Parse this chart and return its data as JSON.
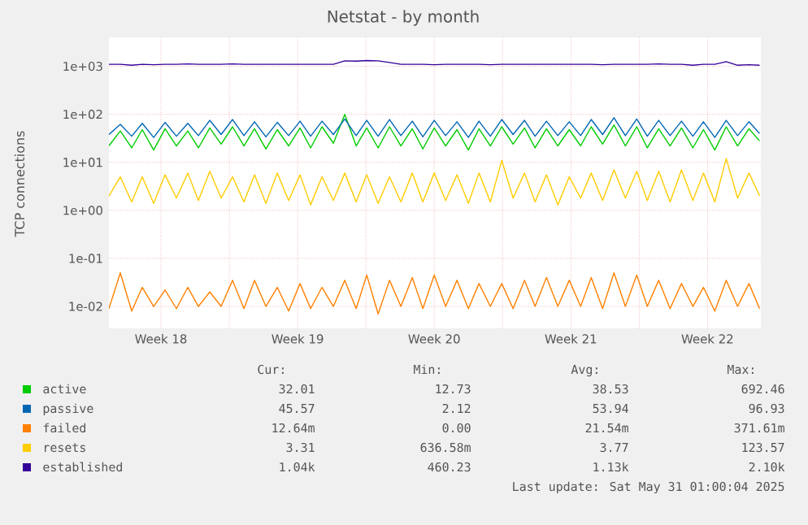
{
  "chart_data": {
    "type": "line",
    "title": "Netstat - by month",
    "ylabel": "TCP connections",
    "log": "y",
    "grid": true,
    "legend": "bottom",
    "marker": "none",
    "line_style": "solid",
    "xlim": [
      "2025-04-28T20:00",
      "2025-06-01T05:36"
    ],
    "xticks": [
      {
        "value": "2025-05-01T12:00",
        "label": "Week 18"
      },
      {
        "value": "2025-05-05",
        "label": null
      },
      {
        "value": "2025-05-08T12:00",
        "label": "Week 19"
      },
      {
        "value": "2025-05-12",
        "label": null
      },
      {
        "value": "2025-05-15T12:00",
        "label": "Week 20"
      },
      {
        "value": "2025-05-19",
        "label": null
      },
      {
        "value": "2025-05-22T12:00",
        "label": "Week 21"
      },
      {
        "value": "2025-05-26",
        "label": null
      },
      {
        "value": "2025-05-29T12:00",
        "label": "Week 22"
      }
    ],
    "ylim": [
      0.0035,
      4000
    ],
    "yticks": [
      {
        "value": 0.01,
        "label": "1e-02"
      },
      {
        "value": 0.1,
        "label": "1e-01"
      },
      {
        "value": 1,
        "label": "1e+00"
      },
      {
        "value": 10,
        "label": "1e+01"
      },
      {
        "value": 100,
        "label": "1e+02"
      },
      {
        "value": 1000,
        "label": "1e+03"
      }
    ],
    "x": [
      "2025-04-28T20:00",
      "2025-04-29T10:00",
      "2025-04-30T00:00",
      "2025-04-30T13:00",
      "2025-05-01T03:00",
      "2025-05-01T17:00",
      "2025-05-02T07:00",
      "2025-05-02T21:00",
      "2025-05-03T10:00",
      "2025-05-04T00:00",
      "2025-05-04T14:00",
      "2025-05-05T04:00",
      "2025-05-05T18:00",
      "2025-05-06T07:00",
      "2025-05-06T21:00",
      "2025-05-07T11:00",
      "2025-05-08T01:00",
      "2025-05-08T15:00",
      "2025-05-09T04:00",
      "2025-05-09T18:00",
      "2025-05-10T08:00",
      "2025-05-10T22:00",
      "2025-05-11T12:00",
      "2025-05-12T01:00",
      "2025-05-12T15:00",
      "2025-05-13T05:00",
      "2025-05-13T19:00",
      "2025-05-14T09:00",
      "2025-05-14T22:00",
      "2025-05-15T12:00",
      "2025-05-16T02:00",
      "2025-05-16T16:00",
      "2025-05-17T06:00",
      "2025-05-17T19:00",
      "2025-05-18T09:00",
      "2025-05-18T23:00",
      "2025-05-19T13:00",
      "2025-05-20T03:00",
      "2025-05-20T16:00",
      "2025-05-21T06:00",
      "2025-05-21T20:00",
      "2025-05-22T10:00",
      "2025-05-23T00:00",
      "2025-05-23T13:00",
      "2025-05-24T03:00",
      "2025-05-24T17:00",
      "2025-05-25T07:00",
      "2025-05-25T21:00",
      "2025-05-26T10:00",
      "2025-05-27T00:00",
      "2025-05-27T14:00",
      "2025-05-28T04:00",
      "2025-05-28T18:00",
      "2025-05-29T07:00",
      "2025-05-29T21:00",
      "2025-05-30T11:00",
      "2025-05-31T01:00",
      "2025-05-31T15:00",
      "2025-06-01T04:00"
    ],
    "series": [
      {
        "name": "active",
        "color": "#00cc00",
        "values": [
          22,
          45,
          20,
          48,
          18,
          50,
          22,
          45,
          20,
          52,
          24,
          55,
          22,
          50,
          19,
          48,
          22,
          52,
          20,
          55,
          25,
          100,
          22,
          52,
          20,
          55,
          22,
          50,
          19,
          52,
          22,
          48,
          18,
          50,
          22,
          55,
          24,
          52,
          20,
          50,
          22,
          48,
          22,
          55,
          24,
          60,
          22,
          55,
          20,
          50,
          22,
          52,
          20,
          48,
          18,
          55,
          22,
          50,
          28
        ]
      },
      {
        "name": "passive",
        "color": "#0066b3",
        "values": [
          38,
          62,
          35,
          65,
          33,
          68,
          35,
          65,
          36,
          75,
          38,
          78,
          36,
          70,
          34,
          68,
          36,
          72,
          35,
          72,
          38,
          80,
          36,
          75,
          35,
          78,
          36,
          72,
          34,
          75,
          36,
          70,
          33,
          72,
          35,
          78,
          38,
          75,
          35,
          72,
          36,
          70,
          36,
          78,
          38,
          85,
          36,
          80,
          35,
          75,
          36,
          72,
          35,
          70,
          33,
          75,
          36,
          70,
          40
        ]
      },
      {
        "name": "failed",
        "color": "#ff8000",
        "values": [
          0.009,
          0.05,
          0.008,
          0.025,
          0.01,
          0.022,
          0.009,
          0.025,
          0.01,
          0.02,
          0.01,
          0.035,
          0.009,
          0.035,
          0.01,
          0.025,
          0.008,
          0.03,
          0.009,
          0.025,
          0.01,
          0.035,
          0.009,
          0.045,
          0.007,
          0.035,
          0.01,
          0.04,
          0.009,
          0.045,
          0.01,
          0.035,
          0.009,
          0.03,
          0.01,
          0.03,
          0.009,
          0.035,
          0.01,
          0.04,
          0.01,
          0.035,
          0.01,
          0.04,
          0.009,
          0.05,
          0.01,
          0.045,
          0.01,
          0.035,
          0.009,
          0.03,
          0.01,
          0.025,
          0.008,
          0.035,
          0.01,
          0.03,
          0.009
        ]
      },
      {
        "name": "resets",
        "color": "#ffcc00",
        "values": [
          2,
          5,
          1.5,
          5,
          1.4,
          5.5,
          1.8,
          6,
          1.6,
          6.5,
          1.8,
          5,
          1.5,
          5.5,
          1.4,
          6,
          1.6,
          5.5,
          1.3,
          5,
          1.6,
          6,
          1.5,
          5.5,
          1.4,
          5,
          1.5,
          6,
          1.5,
          6,
          1.6,
          5.5,
          1.4,
          6,
          1.5,
          11,
          1.8,
          6,
          1.5,
          5.5,
          1.3,
          5,
          1.8,
          6,
          1.6,
          7,
          1.8,
          6.5,
          1.6,
          6.5,
          1.5,
          7,
          1.6,
          6,
          1.5,
          12,
          1.8,
          6,
          2
        ]
      },
      {
        "name": "established",
        "color": "#330099",
        "values": [
          1100,
          1100,
          1050,
          1100,
          1080,
          1100,
          1100,
          1120,
          1100,
          1100,
          1100,
          1120,
          1100,
          1100,
          1100,
          1100,
          1100,
          1100,
          1100,
          1100,
          1100,
          1300,
          1280,
          1320,
          1300,
          1200,
          1100,
          1100,
          1100,
          1080,
          1100,
          1100,
          1100,
          1100,
          1080,
          1100,
          1100,
          1100,
          1100,
          1100,
          1100,
          1100,
          1100,
          1100,
          1080,
          1100,
          1100,
          1100,
          1100,
          1120,
          1100,
          1100,
          1050,
          1100,
          1100,
          1250,
          1050,
          1080,
          1050
        ]
      }
    ],
    "annotations": [
      "Cur:",
      "Min:",
      "Avg:",
      "Max:",
      "32.01",
      "12.73",
      "38.53",
      "692.46",
      "45.57",
      "2.12",
      "53.94",
      "96.93",
      "12.64m",
      "0.00",
      "21.54m",
      "371.61m",
      "3.31",
      "636.58m",
      "3.77",
      "123.57",
      "1.04k",
      "460.23",
      "1.13k",
      "2.10k",
      "Last update: Sat May 31 01:00:04 2025"
    ]
  }
}
